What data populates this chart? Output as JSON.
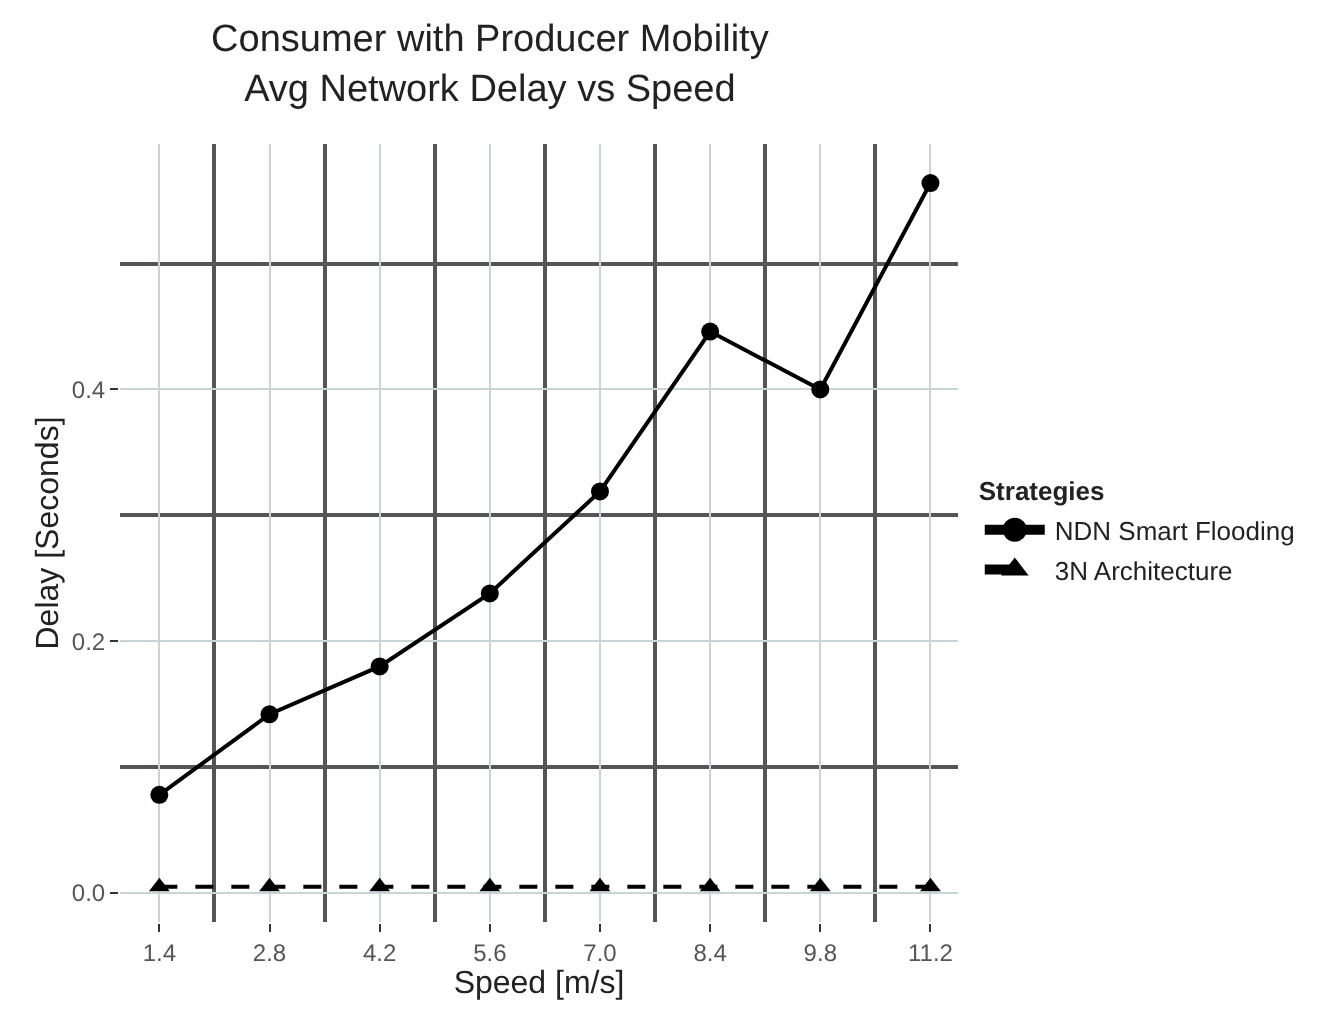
{
  "chart_data": {
    "type": "line",
    "title": "Consumer with Producer Mobility\nAvg Network Delay vs Speed",
    "xlabel": "Speed [m/s]",
    "ylabel": "Delay [Seconds]",
    "legend_title": "Strategies",
    "x": [
      1.4,
      2.8,
      4.2,
      5.6,
      7.0,
      8.4,
      9.8,
      11.2
    ],
    "series": [
      {
        "name": "NDN Smart Flooding",
        "color": "#000000",
        "marker": "circle",
        "line_style": "solid",
        "values": [
          0.078,
          0.142,
          0.18,
          0.238,
          0.319,
          0.446,
          0.4,
          0.564
        ]
      },
      {
        "name": "3N Architecture",
        "color": "#000000",
        "marker": "triangle",
        "line_style": "dashed",
        "values": [
          0.005,
          0.005,
          0.005,
          0.005,
          0.005,
          0.005,
          0.005,
          0.005
        ]
      }
    ],
    "xlim": [
      0.9,
      11.55
    ],
    "xticks": [
      {
        "value": 1.4,
        "label": "1.4"
      },
      {
        "value": 2.8,
        "label": "2.8"
      },
      {
        "value": 4.2,
        "label": "4.2"
      },
      {
        "value": 5.6,
        "label": "5.6"
      },
      {
        "value": 7.0,
        "label": "7.0"
      },
      {
        "value": 8.4,
        "label": "8.4"
      },
      {
        "value": 9.8,
        "label": "9.8"
      },
      {
        "value": 11.2,
        "label": "11.2"
      }
    ],
    "ylim": [
      -0.023,
      0.595
    ],
    "yticks": [
      {
        "value": 0.0,
        "label": "0.0"
      },
      {
        "value": 0.2,
        "label": "0.2"
      },
      {
        "value": 0.4,
        "label": "0.4"
      }
    ],
    "grid": true,
    "legend": "right"
  }
}
